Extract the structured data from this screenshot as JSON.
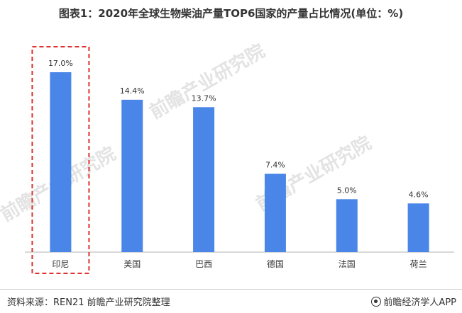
{
  "title": "图表1：2020年全球生物柴油产量TOP6国家的产量占比情况(单位：%)",
  "watermark": "前瞻产业研究院",
  "footer": {
    "source": "资料来源：REN21 前瞻产业研究院整理",
    "brand": "前瞻经济学人APP"
  },
  "colors": {
    "bar": "#4a86e8",
    "highlight_box": "#e03030",
    "axis": "#b0b0b0",
    "text": "#333333"
  },
  "chart_data": {
    "type": "bar",
    "categories": [
      "印尼",
      "美国",
      "巴西",
      "德国",
      "法国",
      "荷兰"
    ],
    "values": [
      17.0,
      14.4,
      13.7,
      7.4,
      5.0,
      4.6
    ],
    "value_labels": [
      "17.0%",
      "14.4%",
      "13.7%",
      "7.4%",
      "5.0%",
      "4.6%"
    ],
    "highlighted": "印尼",
    "title": "图表1：2020年全球生物柴油产量TOP6国家的产量占比情况(单位：%)",
    "xlabel": "",
    "ylabel": "",
    "ylim": [
      0,
      17.0
    ],
    "grid": false
  }
}
